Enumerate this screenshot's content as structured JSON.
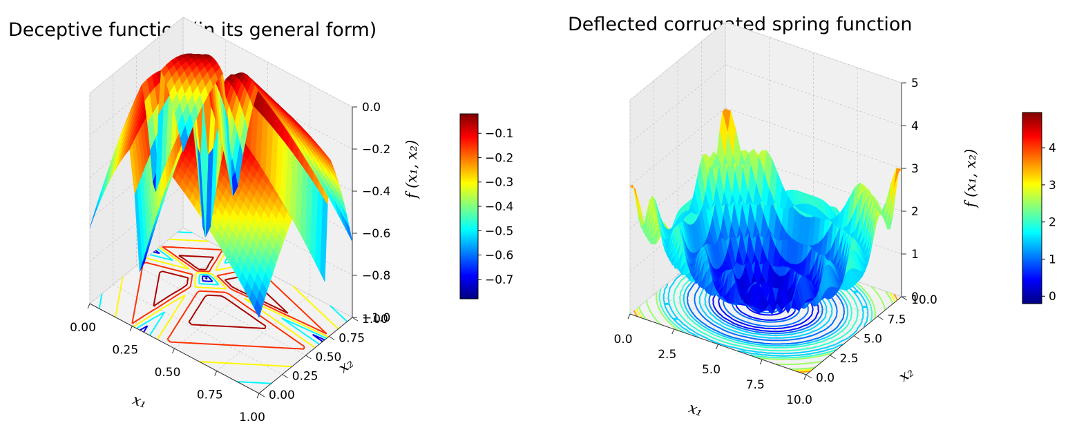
{
  "chart_data": [
    {
      "type": "surface3d",
      "title": "Deceptive function (in its general form)",
      "xlabel": "x₁",
      "ylabel": "x₂",
      "zlabel": "f (x₁, x₂)",
      "xlim": [
        0,
        1
      ],
      "ylim": [
        0,
        1
      ],
      "zlim": [
        -1,
        0
      ],
      "xticks": [
        "0.00",
        "0.25",
        "0.50",
        "0.75",
        "1.00"
      ],
      "yticks": [
        "0.00",
        "0.25",
        "0.50",
        "0.75",
        "1.00"
      ],
      "zticks": [
        "−1.0",
        "−0.8",
        "−0.6",
        "−0.4",
        "−0.2",
        "0.0"
      ],
      "colormap": "jet",
      "colorbar": {
        "range": [
          -0.78,
          -0.02
        ],
        "ticks": [
          "−0.1",
          "−0.2",
          "−0.3",
          "−0.4",
          "−0.5",
          "−0.6",
          "−0.7"
        ],
        "tick_values": [
          -0.1,
          -0.2,
          -0.3,
          -0.4,
          -0.5,
          -0.6,
          -0.7
        ]
      },
      "grid": true,
      "contour_projection": true
    },
    {
      "type": "surface3d",
      "title": "Deflected corrugated spring function",
      "xlabel": "x₁",
      "ylabel": "x₂",
      "zlabel": "f (x₁, x₂)",
      "xlim": [
        0,
        10
      ],
      "ylim": [
        0,
        10
      ],
      "zlim": [
        0,
        5
      ],
      "xticks": [
        "0.0",
        "2.5",
        "5.0",
        "7.5",
        "10.0"
      ],
      "yticks": [
        "0.0",
        "2.5",
        "5.0",
        "7.5",
        "10.0"
      ],
      "zticks": [
        "0",
        "1",
        "2",
        "3",
        "4",
        "5"
      ],
      "colormap": "jet",
      "colorbar": {
        "range": [
          -0.2,
          4.95
        ],
        "ticks": [
          "4",
          "3",
          "2",
          "1",
          "0"
        ],
        "tick_values": [
          4,
          3,
          2,
          1,
          0
        ]
      },
      "grid": true,
      "contour_projection": true
    }
  ],
  "colors": {
    "jet": [
      "#000080",
      "#0000ff",
      "#0080ff",
      "#00ffff",
      "#80ff80",
      "#ffff00",
      "#ff8000",
      "#ff0000",
      "#800000"
    ],
    "pane": "#f2f2f2",
    "grid": "#c8c8c8"
  }
}
